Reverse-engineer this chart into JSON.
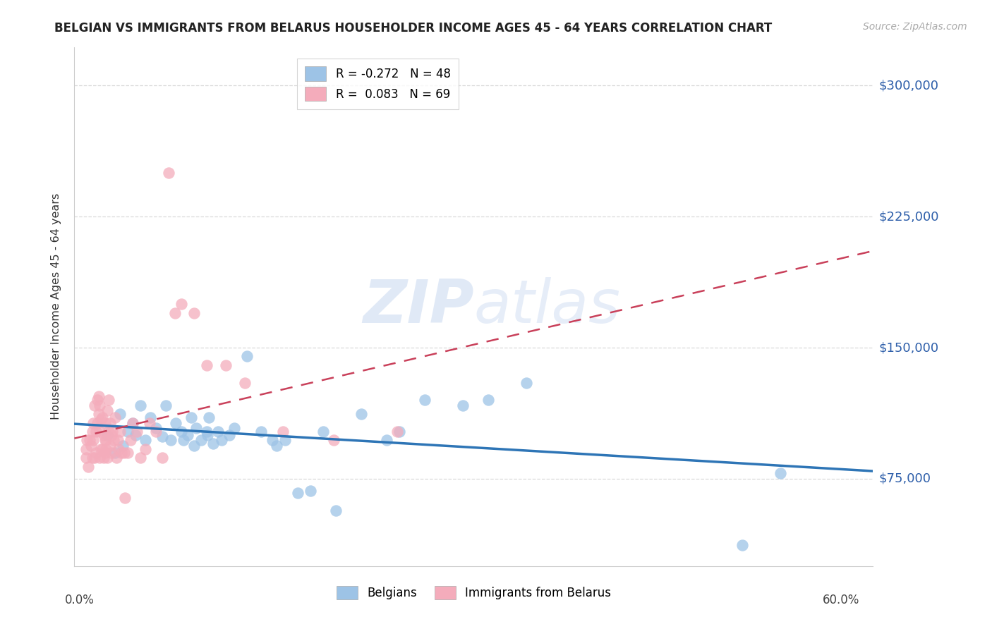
{
  "title": "BELGIAN VS IMMIGRANTS FROM BELARUS HOUSEHOLDER INCOME AGES 45 - 64 YEARS CORRELATION CHART",
  "source": "Source: ZipAtlas.com",
  "ylabel": "Householder Income Ages 45 - 64 years",
  "ytick_labels": [
    "$75,000",
    "$150,000",
    "$225,000",
    "$300,000"
  ],
  "ytick_values": [
    75000,
    150000,
    225000,
    300000
  ],
  "ymin": 25000,
  "ymax": 322000,
  "xmin": -0.004,
  "xmax": 0.625,
  "blue_color": "#9dc3e6",
  "pink_color": "#f4acbb",
  "blue_line_color": "#2e75b6",
  "pink_line_color": "#c9405a",
  "grid_color": "#d9d9d9",
  "belgians_x": [
    0.022,
    0.028,
    0.032,
    0.034,
    0.038,
    0.042,
    0.044,
    0.048,
    0.052,
    0.056,
    0.06,
    0.065,
    0.068,
    0.072,
    0.076,
    0.08,
    0.082,
    0.085,
    0.088,
    0.09,
    0.092,
    0.096,
    0.1,
    0.101,
    0.102,
    0.105,
    0.109,
    0.112,
    0.118,
    0.122,
    0.132,
    0.143,
    0.152,
    0.155,
    0.162,
    0.172,
    0.182,
    0.192,
    0.202,
    0.222,
    0.242,
    0.252,
    0.272,
    0.302,
    0.322,
    0.352,
    0.522,
    0.552
  ],
  "belgians_y": [
    100000,
    90000,
    112000,
    94000,
    102000,
    107000,
    100000,
    117000,
    97000,
    110000,
    104000,
    99000,
    117000,
    97000,
    107000,
    102000,
    97000,
    100000,
    110000,
    94000,
    104000,
    97000,
    102000,
    100000,
    110000,
    95000,
    102000,
    97000,
    100000,
    104000,
    145000,
    102000,
    97000,
    94000,
    97000,
    67000,
    68000,
    102000,
    57000,
    112000,
    97000,
    102000,
    120000,
    117000,
    120000,
    130000,
    37000,
    78000
  ],
  "belarus_x": [
    0.005,
    0.005,
    0.006,
    0.007,
    0.008,
    0.009,
    0.01,
    0.01,
    0.011,
    0.011,
    0.012,
    0.012,
    0.013,
    0.013,
    0.014,
    0.014,
    0.015,
    0.015,
    0.016,
    0.016,
    0.016,
    0.017,
    0.017,
    0.018,
    0.018,
    0.019,
    0.019,
    0.02,
    0.02,
    0.02,
    0.021,
    0.021,
    0.022,
    0.022,
    0.023,
    0.023,
    0.024,
    0.024,
    0.025,
    0.025,
    0.026,
    0.027,
    0.028,
    0.029,
    0.03,
    0.031,
    0.032,
    0.033,
    0.035,
    0.036,
    0.038,
    0.04,
    0.042,
    0.045,
    0.048,
    0.052,
    0.055,
    0.06,
    0.065,
    0.07,
    0.075,
    0.08,
    0.09,
    0.1,
    0.115,
    0.13,
    0.16,
    0.2,
    0.25
  ],
  "belarus_y": [
    92000,
    87000,
    97000,
    82000,
    97000,
    94000,
    102000,
    87000,
    97000,
    107000,
    87000,
    117000,
    90000,
    102000,
    107000,
    120000,
    112000,
    122000,
    87000,
    102000,
    117000,
    92000,
    109000,
    92000,
    110000,
    87000,
    100000,
    90000,
    97000,
    107000,
    92000,
    97000,
    114000,
    87000,
    102000,
    120000,
    107000,
    94000,
    100000,
    90000,
    102000,
    97000,
    110000,
    87000,
    97000,
    92000,
    102000,
    90000,
    90000,
    64000,
    90000,
    97000,
    107000,
    102000,
    87000,
    92000,
    107000,
    102000,
    87000,
    250000,
    170000,
    175000,
    170000,
    140000,
    140000,
    130000,
    102000,
    97000,
    102000
  ]
}
